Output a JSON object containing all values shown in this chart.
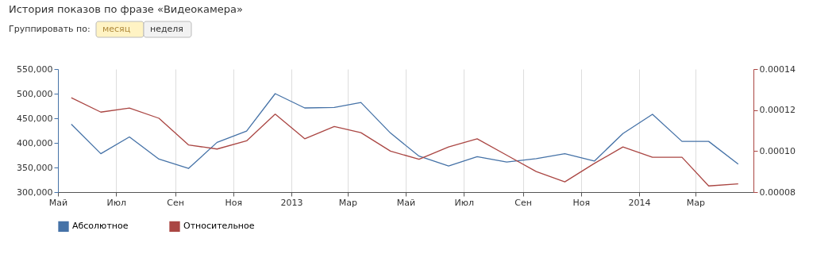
{
  "chart_data": {
    "type": "line",
    "title": "История показов по фразе «Видеокамера»",
    "annotations": [
      "Группировать по:",
      "месяц",
      "неделя"
    ],
    "x": [
      "2012-05-15",
      "2012-06-15",
      "2012-07-15",
      "2012-08-15",
      "2012-09-15",
      "2012-10-15",
      "2012-11-15",
      "2012-12-15",
      "2013-01-15",
      "2013-02-15",
      "2013-03-15",
      "2013-04-15",
      "2013-05-15",
      "2013-06-15",
      "2013-07-15",
      "2013-08-15",
      "2013-09-15",
      "2013-10-15",
      "2013-11-15",
      "2013-12-15",
      "2014-01-15",
      "2014-02-15",
      "2014-03-15",
      "2014-04-15"
    ],
    "series": [
      {
        "name": "Абсолютное",
        "color": "#4572a7",
        "values": [
          438000,
          378000,
          412000,
          367000,
          348000,
          401000,
          424000,
          500000,
          471000,
          472000,
          482000,
          420000,
          373000,
          353000,
          372000,
          361000,
          368000,
          378000,
          363000,
          419000,
          458000,
          403000,
          403000,
          357000
        ]
      },
      {
        "name": "Относительное",
        "color": "#aa4643",
        "axis": "y2",
        "values": [
          0.000126,
          0.000119,
          0.000121,
          0.000116,
          0.000103,
          0.000101,
          0.000105,
          0.000118,
          0.000106,
          0.000112,
          0.000109,
          0.0001,
          9.6e-05,
          0.000102,
          0.000106,
          9.8e-05,
          9e-05,
          8.5e-05,
          9.4e-05,
          0.000102,
          9.7e-05,
          9.7e-05,
          8.3e-05,
          8.4e-05
        ]
      }
    ],
    "xlim": [
      "2012-05-01",
      "2014-05-01"
    ],
    "xticks": [
      {
        "value": "2012-05-01",
        "label": "Май"
      },
      {
        "value": "2012-07-01",
        "label": "Июл"
      },
      {
        "value": "2012-09-01",
        "label": "Сен"
      },
      {
        "value": "2012-11-01",
        "label": "Ноя"
      },
      {
        "value": "2013-01-01",
        "label": "2013"
      },
      {
        "value": "2013-03-01",
        "label": "Мар"
      },
      {
        "value": "2013-05-01",
        "label": "Май"
      },
      {
        "value": "2013-07-01",
        "label": "Июл"
      },
      {
        "value": "2013-09-01",
        "label": "Сен"
      },
      {
        "value": "2013-11-01",
        "label": "Ноя"
      },
      {
        "value": "2014-01-01",
        "label": "2014"
      },
      {
        "value": "2014-03-01",
        "label": "Мар"
      }
    ],
    "ylim": [
      300000,
      550000
    ],
    "yticks": [
      {
        "value": 300000,
        "label": "300,000"
      },
      {
        "value": 350000,
        "label": "350,000"
      },
      {
        "value": 400000,
        "label": "400,000"
      },
      {
        "value": 450000,
        "label": "450,000"
      },
      {
        "value": 500000,
        "label": "500,000"
      },
      {
        "value": 550000,
        "label": "550,000"
      }
    ],
    "y2lim": [
      8e-05,
      0.00014
    ],
    "y2ticks": [
      {
        "value": 8e-05,
        "label": "0.00008"
      },
      {
        "value": 0.0001,
        "label": "0.00010"
      },
      {
        "value": 0.00012,
        "label": "0.00012"
      },
      {
        "value": 0.00014,
        "label": "0.00014"
      }
    ],
    "grid": "x",
    "legend": "bottom left",
    "marker": "none",
    "line_style": "solid"
  }
}
